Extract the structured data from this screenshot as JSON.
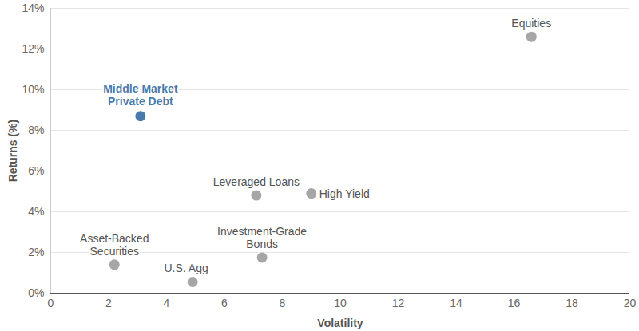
{
  "chart_data": {
    "type": "scatter",
    "x_label": "Volatility",
    "y_label": "Returns (%)",
    "labels": [
      "Middle Market\nPrivate Debt",
      "Equities",
      "Leveraged Loans",
      "High Yield",
      "Investment-Grade\nBonds",
      "Asset-Backed\nSecurities",
      "U.S. Agg"
    ],
    "x": [
      3.1,
      16.6,
      7.1,
      9.0,
      7.3,
      2.2,
      4.9
    ],
    "values": [
      8.7,
      12.6,
      4.8,
      4.9,
      1.75,
      1.4,
      0.55
    ],
    "colors": [
      "#4a7aab",
      "#a6a6a6",
      "#a6a6a6",
      "#a6a6a6",
      "#a6a6a6",
      "#a6a6a6",
      "#a6a6a6"
    ],
    "xlim": [
      0,
      20
    ],
    "xticks": [
      0,
      2,
      4,
      6,
      8,
      10,
      12,
      14,
      16,
      18,
      20
    ],
    "ylim": [
      0,
      14
    ],
    "yticks": [
      {
        "value": 0,
        "label": "0%"
      },
      {
        "value": 2,
        "label": "2%"
      },
      {
        "value": 4,
        "label": "4%"
      },
      {
        "value": 6,
        "label": "6%"
      },
      {
        "value": 8,
        "label": "8%"
      },
      {
        "value": 10,
        "label": "10%"
      },
      {
        "value": 12,
        "label": "12%"
      },
      {
        "value": 14,
        "label": "14%"
      }
    ],
    "grid": true
  }
}
